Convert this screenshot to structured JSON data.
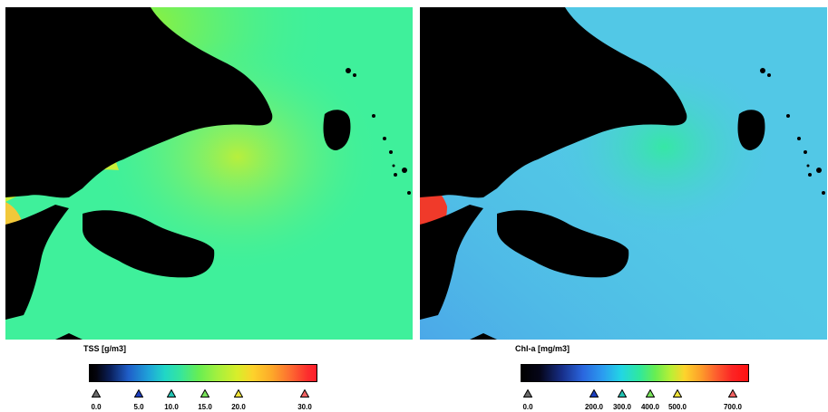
{
  "panels": {
    "tss": {
      "legend": {
        "title": "TSS [g/m3]",
        "ticks": [
          {
            "label": "0.0",
            "color": "#6b6b6b"
          },
          {
            "label": "5.0",
            "color": "#1d3fbf"
          },
          {
            "label": "10.0",
            "color": "#22c2b1"
          },
          {
            "label": "15.0",
            "color": "#78e25a"
          },
          {
            "label": "20.0",
            "color": "#efe23a"
          },
          {
            "label": "30.0",
            "color": "#f06262"
          }
        ]
      }
    },
    "chla": {
      "legend": {
        "title": "Chl-a [mg/m3]",
        "ticks": [
          {
            "label": "0.0",
            "color": "#6b6b6b"
          },
          {
            "label": "200.0",
            "color": "#1d3fbf"
          },
          {
            "label": "300.0",
            "color": "#22c2b1"
          },
          {
            "label": "400.0",
            "color": "#78e25a"
          },
          {
            "label": "500.0",
            "color": "#efe23a"
          },
          {
            "label": "700.0",
            "color": "#f06262"
          }
        ]
      }
    }
  },
  "colors": {
    "land": "#000000",
    "tss_water": "#3ff09b",
    "chla_water": "#52c8e6"
  }
}
